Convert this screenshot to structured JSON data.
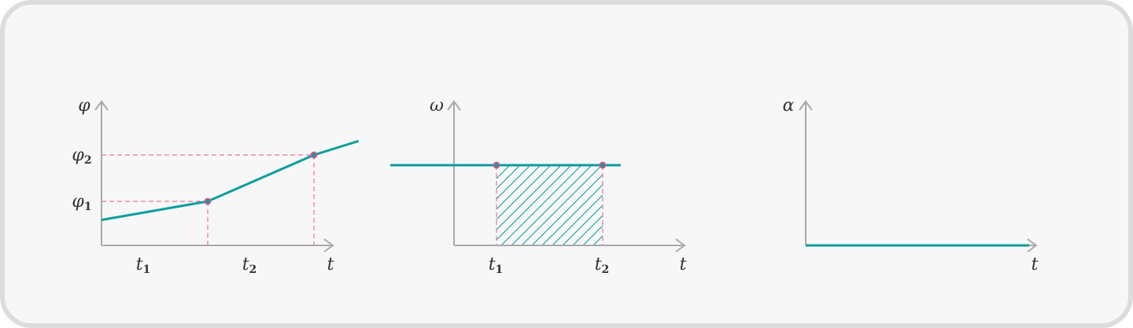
{
  "colors": {
    "axis": "#a9a9a9",
    "line": "#0e9d9d",
    "guide": "#f08cab",
    "point_stroke": "#e0508a"
  },
  "chart_data": [
    {
      "type": "line",
      "ylabel": "φ",
      "xlabel": "t",
      "x_ticks": [
        {
          "sym": "t",
          "sub": "1"
        },
        {
          "sym": "t",
          "sub": "2"
        }
      ],
      "y_ticks": [
        {
          "sym": "φ",
          "sub": "1"
        },
        {
          "sym": "φ",
          "sub": "2"
        }
      ],
      "series": [
        {
          "x": [
            0,
            1,
            2,
            2.42
          ],
          "y": [
            0.6,
            1,
            2,
            2.3
          ]
        }
      ],
      "points": [
        {
          "x": 1,
          "y": 1
        },
        {
          "x": 2,
          "y": 2
        }
      ]
    },
    {
      "type": "line",
      "ylabel": "ω",
      "xlabel": "t",
      "x_ticks": [
        {
          "sym": "t",
          "sub": "1"
        },
        {
          "sym": "t",
          "sub": "2"
        }
      ],
      "series": [
        {
          "x": [
            0,
            1,
            2,
            2.17
          ],
          "y": [
            1,
            1,
            1,
            1
          ]
        }
      ],
      "points": [
        {
          "x": 1,
          "y": 1
        },
        {
          "x": 2,
          "y": 1
        }
      ],
      "shaded": {
        "x_from": 1,
        "x_to": 2,
        "pattern": "hatched"
      }
    },
    {
      "type": "line",
      "ylabel": "α",
      "xlabel": "t",
      "series": [
        {
          "x": [
            0,
            1
          ],
          "y": [
            0,
            0
          ]
        }
      ]
    }
  ]
}
